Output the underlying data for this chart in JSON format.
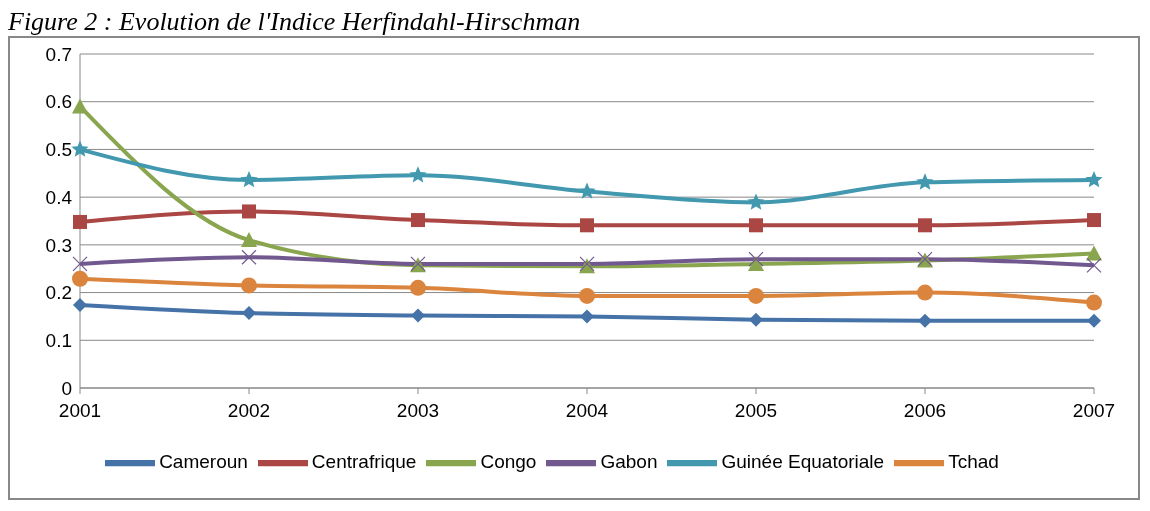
{
  "chart_data": {
    "type": "line",
    "title": "Figure 2 : Evolution de l'Indice Herfindahl-Hirschman",
    "categories": [
      "2001",
      "2002",
      "2003",
      "2004",
      "2005",
      "2006",
      "2007"
    ],
    "series": [
      {
        "name": "Cameroun",
        "color": "#4572a7",
        "marker": "diamond",
        "values": [
          0.174,
          0.157,
          0.152,
          0.15,
          0.143,
          0.141,
          0.141
        ]
      },
      {
        "name": "Centrafrique",
        "color": "#aa4643",
        "marker": "square",
        "values": [
          0.348,
          0.37,
          0.352,
          0.341,
          0.341,
          0.341,
          0.352
        ]
      },
      {
        "name": "Congo",
        "color": "#89a54e",
        "marker": "triangle",
        "values": [
          0.59,
          0.31,
          0.257,
          0.255,
          0.26,
          0.267,
          0.282
        ]
      },
      {
        "name": "Gabon",
        "color": "#71588f",
        "marker": "cross",
        "values": [
          0.26,
          0.274,
          0.26,
          0.26,
          0.27,
          0.27,
          0.257
        ]
      },
      {
        "name": "Guinée Equatoriale",
        "color": "#4198af",
        "marker": "star",
        "values": [
          0.5,
          0.436,
          0.446,
          0.412,
          0.389,
          0.431,
          0.436
        ]
      },
      {
        "name": "Tchad",
        "color": "#db843d",
        "marker": "circle",
        "values": [
          0.229,
          0.215,
          0.21,
          0.193,
          0.193,
          0.2,
          0.179
        ]
      }
    ],
    "ylim": [
      0,
      0.7
    ],
    "yticks": [
      0,
      0.1,
      0.2,
      0.3,
      0.4,
      0.5,
      0.6,
      0.7
    ],
    "grid": "y",
    "legend": "bottom"
  }
}
